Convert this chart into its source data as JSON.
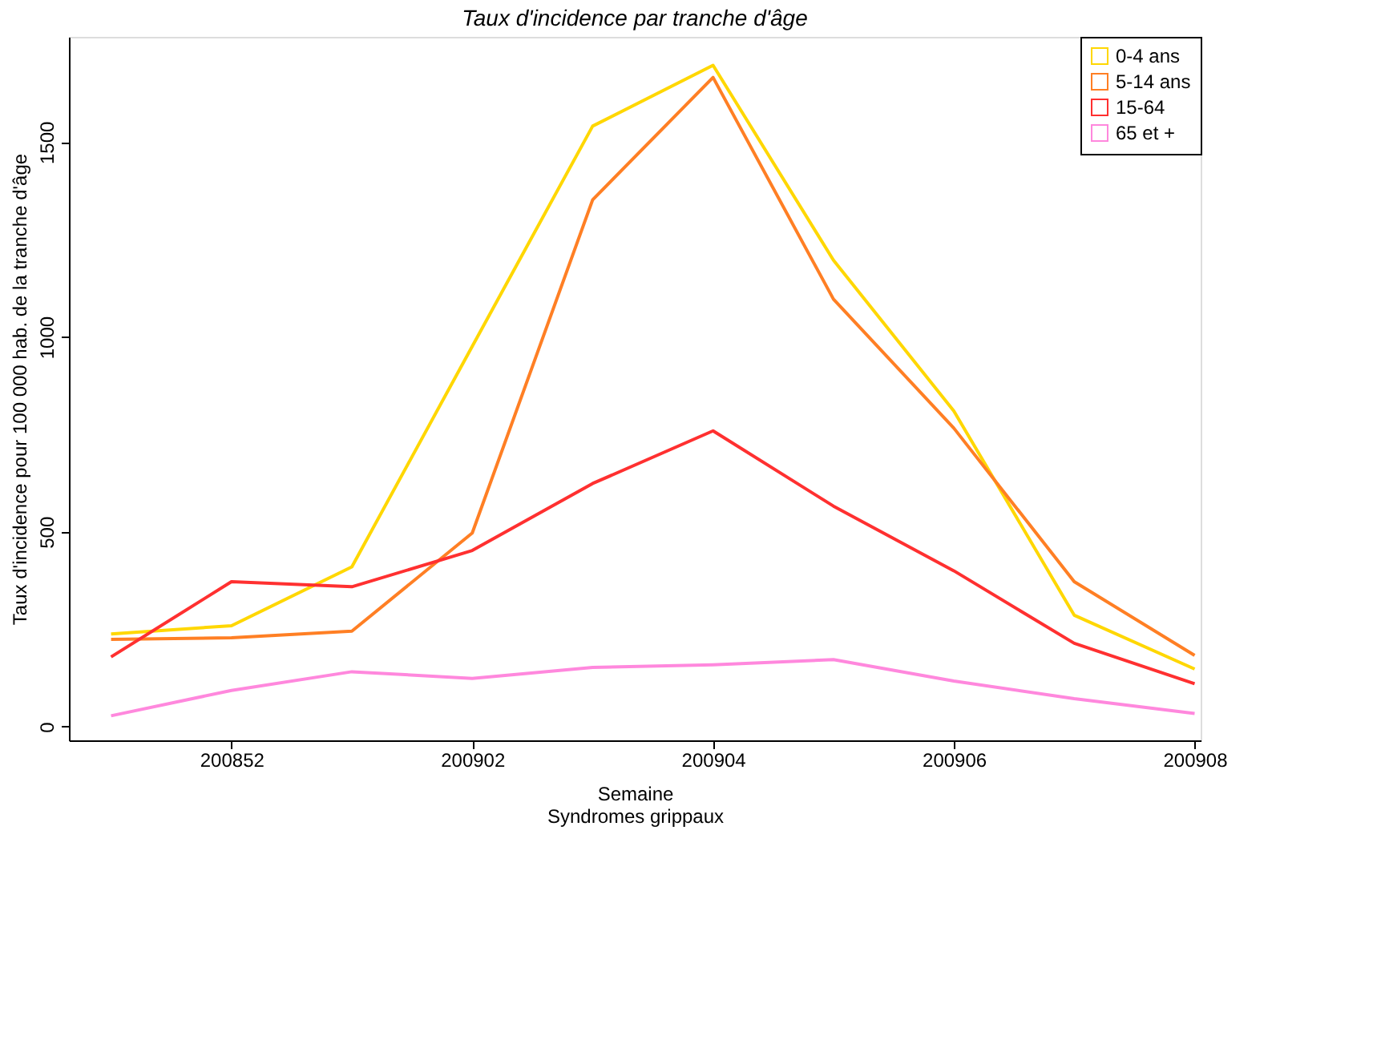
{
  "chart_data": {
    "type": "line",
    "title": "Taux d'incidence par tranche d'âge",
    "xlabel": "Semaine",
    "ylabel": "Taux d'incidence pour 100 000 hab. de la tranche d'âge",
    "annotations": [
      "Syndromes grippaux"
    ],
    "categories": [
      null,
      "200852",
      null,
      "200902",
      null,
      "200904",
      null,
      "200906",
      null,
      "200908"
    ],
    "series": [
      {
        "name": "0-4 ans",
        "color": "#ffd700",
        "values": [
          238,
          259,
          410,
          976,
          1541,
          1697,
          1197,
          810,
          286,
          148
        ]
      },
      {
        "name": "5-14 ans",
        "color": "#ff7f24",
        "values": [
          224,
          228,
          245,
          497,
          1352,
          1666,
          1097,
          766,
          372,
          183
        ]
      },
      {
        "name": "15-64",
        "color": "#ff3030",
        "values": [
          179,
          372,
          359,
          452,
          624,
          759,
          566,
          400,
          214,
          110
        ]
      },
      {
        "name": "65 et +",
        "color": "#ff88dd",
        "values": [
          28,
          93,
          141,
          124,
          152,
          159,
          172,
          117,
          72,
          34
        ]
      }
    ],
    "ylim": [
      -35,
      1770
    ],
    "yticks": [
      0,
      500,
      1000,
      1500
    ],
    "grid": false,
    "legend": "top right",
    "marker": "none",
    "line_style": "solid"
  }
}
